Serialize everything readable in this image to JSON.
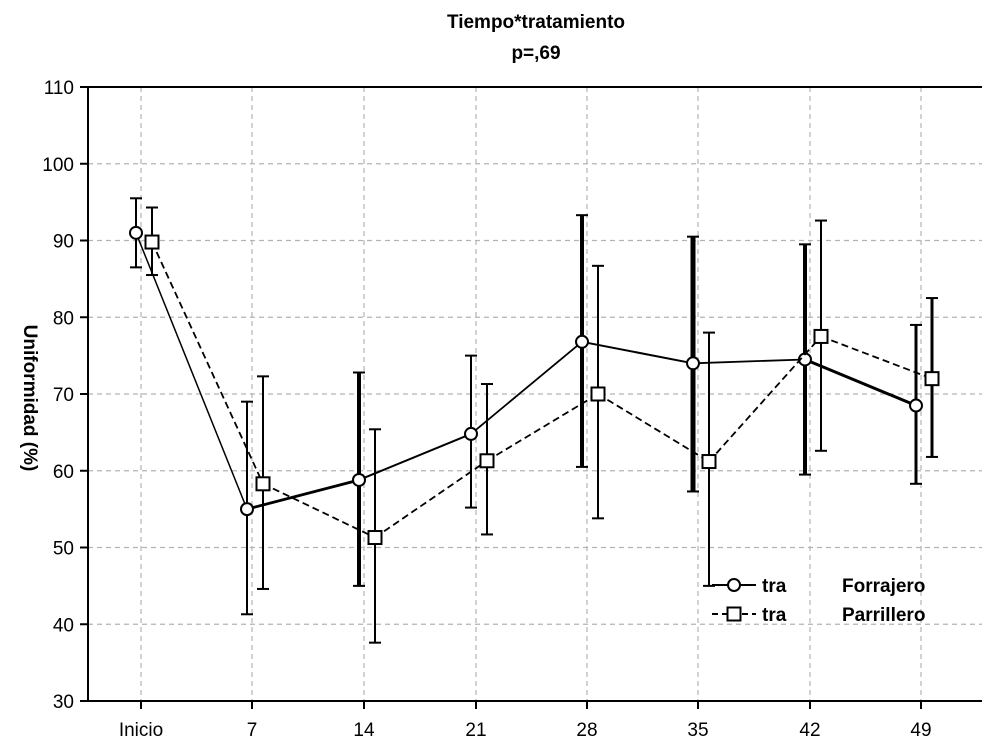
{
  "chart_data": {
    "type": "line",
    "title": "Tiempo*tratamiento",
    "subtitle": "p=,69",
    "xlabel": "",
    "ylabel": "Uniformidad (%)",
    "categories": [
      "Inicio",
      "7",
      "14",
      "21",
      "28",
      "35",
      "42",
      "49"
    ],
    "ylim": [
      30,
      110
    ],
    "yticks": [
      30,
      40,
      50,
      60,
      70,
      80,
      90,
      100,
      110
    ],
    "grid": true,
    "legend_position": "bottom-right",
    "series": [
      {
        "name": "Forrajero",
        "legend_prefix": "tra",
        "marker": "circle",
        "line_style": "solid",
        "values": [
          91,
          55,
          58.8,
          64.8,
          76.8,
          74,
          74.5,
          68.5
        ],
        "error_low": [
          86.5,
          41.3,
          45,
          55.2,
          60.5,
          57.3,
          59.5,
          58.3
        ],
        "error_high": [
          95.5,
          69,
          72.8,
          75,
          93.3,
          90.5,
          89.5,
          79
        ]
      },
      {
        "name": "Parrillero",
        "legend_prefix": "tra",
        "marker": "square",
        "line_style": "dashed",
        "values": [
          89.8,
          58.3,
          51.3,
          61.3,
          70,
          61.2,
          77.5,
          72
        ],
        "error_low": [
          85.5,
          44.6,
          37.6,
          51.7,
          53.8,
          45,
          62.6,
          61.8
        ],
        "error_high": [
          94.3,
          72.3,
          65.4,
          71.3,
          86.7,
          78,
          92.6,
          82.5
        ]
      }
    ]
  }
}
